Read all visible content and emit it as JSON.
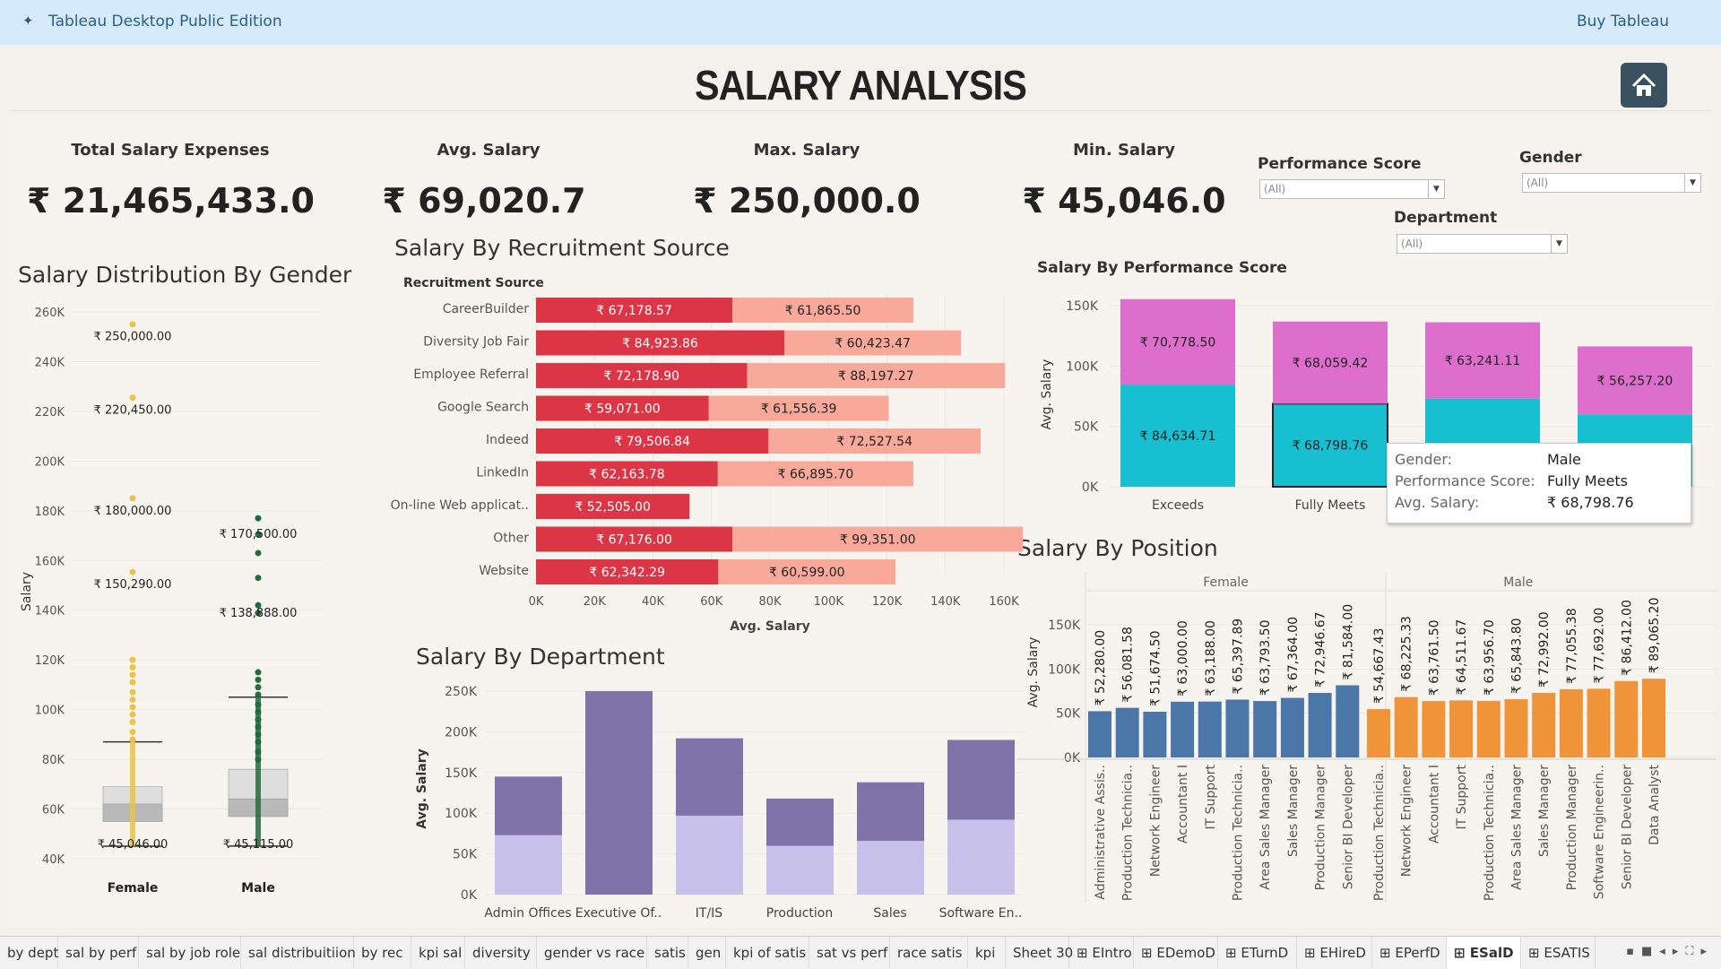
{
  "app": {
    "title": "Tableau Desktop Public Edition",
    "buy": "Buy Tableau",
    "logo_icon": "tableau-logo-icon"
  },
  "dashboard": {
    "title": "SALARY ANALYSIS",
    "home_icon": "home-icon"
  },
  "kpis": [
    {
      "label": "Total Salary Expenses",
      "value": "₹ 21,465,433.0"
    },
    {
      "label": "Avg. Salary",
      "value": "₹ 69,020.7"
    },
    {
      "label": "Max. Salary",
      "value": "₹ 250,000.0"
    },
    {
      "label": "Min. Salary",
      "value": "₹ 45,046.0"
    }
  ],
  "filters": [
    {
      "label": "Performance Score",
      "value": "(All)"
    },
    {
      "label": "Gender",
      "value": "(All)"
    },
    {
      "label": "Department",
      "value": "(All)"
    }
  ],
  "colors": {
    "female": "#e8c548",
    "male": "#1f6e3a",
    "rec_dark": "#dc3545",
    "rec_light": "#f9a999",
    "perf_top": "#dd6ecb",
    "perf_bottom": "#18bfd1",
    "dept_dark": "#8073a9",
    "dept_light": "#c6c0ea",
    "pos_female": "#4b76a8",
    "pos_male": "#f0943a"
  },
  "chart_data": [
    {
      "type": "scatter",
      "title": "Salary Distribution By Gender",
      "ylabel": "Salary",
      "ylim": [
        40000,
        260000
      ],
      "y_ticks": [
        "260K",
        "240K",
        "220K",
        "200K",
        "180K",
        "160K",
        "140K",
        "120K",
        "100K",
        "80K",
        "60K",
        "40K"
      ],
      "categories": [
        "Female",
        "Male"
      ],
      "labels": [
        {
          "category": "Female",
          "value": 250000,
          "text": "₹ 250,000.00"
        },
        {
          "category": "Female",
          "value": 220450,
          "text": "₹ 220,450.00"
        },
        {
          "category": "Female",
          "value": 180000,
          "text": "₹ 180,000.00"
        },
        {
          "category": "Female",
          "value": 150290,
          "text": "₹ 150,290.00"
        },
        {
          "category": "Female",
          "value": 45046,
          "text": "₹ 45,046.00"
        },
        {
          "category": "Male",
          "value": 170500,
          "text": "₹ 170,500.00"
        },
        {
          "category": "Male",
          "value": 138888,
          "text": "₹ 138,888.00"
        },
        {
          "category": "Male",
          "value": 45115,
          "text": "₹ 45,115.00"
        }
      ],
      "boxplots": [
        {
          "category": "Female",
          "min": 45046,
          "q1": 55000,
          "median": 62000,
          "q3": 69000,
          "whisker_high": 87000
        },
        {
          "category": "Male",
          "min": 45115,
          "q1": 57000,
          "median": 64000,
          "q3": 76000,
          "whisker_high": 105000
        }
      ]
    },
    {
      "type": "bar",
      "title": "Salary By Recruitment Source",
      "header": "Recruitment Source",
      "xlabel": "Avg. Salary",
      "x_ticks": [
        "0K",
        "20K",
        "40K",
        "60K",
        "80K",
        "100K",
        "120K",
        "140K",
        "160K"
      ],
      "xlim": [
        0,
        160000
      ],
      "categories": [
        "CareerBuilder",
        "Diversity Job Fair",
        "Employee Referral",
        "Google Search",
        "Indeed",
        "LinkedIn",
        "On-line Web applicat..",
        "Other",
        "Website"
      ],
      "series": [
        {
          "values": [
            67178.57,
            84923.86,
            72178.9,
            59071.0,
            79506.84,
            62163.78,
            52505.0,
            67176.0,
            62342.29
          ],
          "labels": [
            "₹ 67,178.57",
            "₹ 84,923.86",
            "₹ 72,178.90",
            "₹ 59,071.00",
            "₹ 79,506.84",
            "₹ 62,163.78",
            "₹ 52,505.00",
            "₹ 67,176.00",
            "₹ 62,342.29"
          ]
        },
        {
          "values": [
            61865.5,
            60423.47,
            88197.27,
            61556.39,
            72527.54,
            66895.7,
            0,
            99351.0,
            60599.0
          ],
          "labels": [
            "₹ 61,865.50",
            "₹ 60,423.47",
            "₹ 88,197.27",
            "₹ 61,556.39",
            "₹ 72,527.54",
            "₹ 66,895.70",
            "",
            "₹ 99,351.00",
            "₹ 60,599.00"
          ]
        }
      ]
    },
    {
      "type": "bar",
      "title": "Salary By Performance Score",
      "ylabel": "Avg. Salary",
      "y_ticks": [
        "150K",
        "100K",
        "50K",
        "0K"
      ],
      "ylim": [
        0,
        150000
      ],
      "categories": [
        "Exceeds",
        "Fully Meets",
        "",
        ""
      ],
      "series": [
        {
          "values": [
            84634.71,
            68798.76,
            73000,
            60000
          ],
          "labels": [
            "₹ 84,634.71",
            "₹ 68,798.76",
            "",
            ""
          ]
        },
        {
          "values": [
            70778.5,
            68059.42,
            63241.11,
            56257.2
          ],
          "labels": [
            "₹ 70,778.50",
            "₹ 68,059.42",
            "₹ 63,241.11",
            "₹ 56,257.20"
          ]
        }
      ]
    },
    {
      "type": "bar",
      "title": "Salary By Department",
      "ylabel": "Avg. Salary",
      "y_ticks": [
        "250K",
        "200K",
        "150K",
        "100K",
        "50K",
        "0K"
      ],
      "ylim": [
        0,
        250000
      ],
      "categories": [
        "Admin Offices",
        "Executive Of..",
        "IT/IS",
        "Production",
        "Sales",
        "Software En.."
      ],
      "series": [
        {
          "values": [
            73000,
            0,
            97000,
            60000,
            66000,
            92000
          ]
        },
        {
          "values": [
            72000,
            250000,
            95000,
            58000,
            72000,
            98000
          ]
        }
      ]
    },
    {
      "type": "bar",
      "title": "Salary By Position",
      "ylabel": "Avg. Salary",
      "y_ticks": [
        "150K",
        "100K",
        "50K",
        "0K"
      ],
      "ylim": [
        0,
        150000
      ],
      "groups": [
        "Female",
        "Male"
      ],
      "series": [
        {
          "name": "Female",
          "categories": [
            "Administrative Assis..",
            "Production Technicia..",
            "Network Engineer",
            "Accountant I",
            "IT Support",
            "Production Technicia..",
            "Area Sales Manager",
            "Sales Manager",
            "Production Manager",
            "Senior BI Developer"
          ],
          "values": [
            52280.0,
            56081.58,
            51674.5,
            63000.0,
            63188.0,
            65397.89,
            63793.5,
            67364.0,
            72946.67,
            81584.0
          ],
          "labels": [
            "₹ 52,280.00",
            "₹ 56,081.58",
            "₹ 51,674.50",
            "₹ 63,000.00",
            "₹ 63,188.00",
            "₹ 65,397.89",
            "₹ 63,793.50",
            "₹ 67,364.00",
            "₹ 72,946.67",
            "₹ 81,584.00"
          ]
        },
        {
          "name": "Male",
          "categories": [
            "Production Technicia..",
            "Network Engineer",
            "Accountant I",
            "IT Support",
            "Production Technicia..",
            "Area Sales Manager",
            "Sales Manager",
            "Production Manager",
            "Software Engineerin..",
            "Senior BI Developer",
            "Data Analyst"
          ],
          "values": [
            54667.43,
            68225.33,
            63761.5,
            64511.67,
            63956.7,
            65843.8,
            72992.0,
            77055.38,
            77692.0,
            86412.0,
            89065.2
          ],
          "labels": [
            "₹ 54,667.43",
            "₹ 68,225.33",
            "₹ 63,761.50",
            "₹ 64,511.67",
            "₹ 63,956.70",
            "₹ 65,843.80",
            "₹ 72,992.00",
            "₹ 77,055.38",
            "₹ 77,692.00",
            "₹ 86,412.00",
            "₹ 89,065.20"
          ]
        }
      ]
    }
  ],
  "tooltip": {
    "rows": [
      {
        "key": "Gender:",
        "value": "Male"
      },
      {
        "key": "Performance Score:",
        "value": "Fully Meets"
      },
      {
        "key": "Avg. Salary:",
        "value": "₹ 68,798.76"
      }
    ]
  },
  "tabs": [
    "by dept",
    "sal by perf",
    "sal by job role",
    "sal distribuitiion",
    "by rec",
    "kpi sal",
    "diversity",
    "gender vs race",
    "satis",
    "gen",
    "kpi of satis",
    "sat vs perf",
    "race satis",
    "kpi",
    "Sheet 30",
    "EIntro",
    "EDemoD",
    "ETurnD",
    "EHireD",
    "EPerfD",
    "ESalD",
    "ESATIS"
  ],
  "active_tab": "ESalD"
}
